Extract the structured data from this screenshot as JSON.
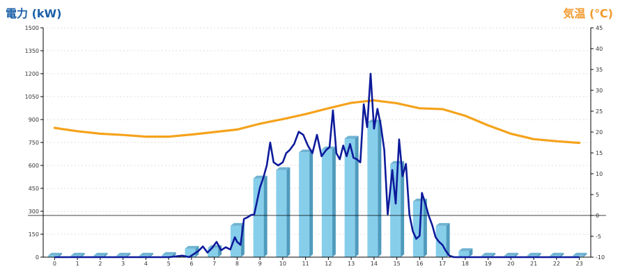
{
  "chart_data": {
    "type": "bar",
    "title_left": "電力 (kW)",
    "title_right": "気温 (℃)",
    "colors": {
      "bar": "#87ceeb",
      "power_line": "#0d1a9a",
      "temp_line": "#f5a21b",
      "title_left": "#1a5fa8",
      "title_right": "#f29a2e",
      "grid": "#bbbbbb"
    },
    "grid": true,
    "y_left": {
      "min": 0,
      "max": 1500,
      "ticks": [
        "0",
        "150",
        "300",
        "450",
        "600",
        "750",
        "900",
        "1050",
        "1200",
        "1350",
        "1500"
      ]
    },
    "y_right": {
      "min": -10,
      "max": 45,
      "ticks": [
        "-10",
        "-5",
        "0",
        "5",
        "10",
        "15",
        "20",
        "25",
        "30",
        "35",
        "40",
        "45"
      ]
    },
    "x_ticks": [
      "0",
      "1",
      "2",
      "3",
      "4",
      "5",
      "6",
      "7",
      "8",
      "9",
      "10",
      "11",
      "12",
      "13",
      "14",
      "15",
      "16",
      "17",
      "18",
      "19",
      "20",
      "21",
      "22",
      "23"
    ],
    "zero_line_temp": 0,
    "bars": [
      10,
      10,
      10,
      10,
      10,
      15,
      55,
      60,
      205,
      515,
      570,
      685,
      705,
      775,
      880,
      610,
      365,
      205,
      40,
      10,
      10,
      10,
      10,
      10
    ],
    "temperature": {
      "x": [
        0,
        1,
        2,
        3,
        4,
        5,
        6,
        7,
        8,
        9,
        10,
        11,
        12,
        13,
        14,
        15,
        16,
        17,
        18,
        19,
        20,
        21,
        22,
        23
      ],
      "values": [
        21,
        20.2,
        19.6,
        19.3,
        18.9,
        18.9,
        19.4,
        20,
        20.6,
        22,
        23.1,
        24.3,
        25.7,
        27,
        27.6,
        26.9,
        25.7,
        25.5,
        23.9,
        21.6,
        19.6,
        18.3,
        17.8,
        17.4
      ]
    },
    "power": {
      "x": [
        0,
        1,
        2,
        3,
        4,
        5,
        5.3,
        5.6,
        5.9,
        6.1,
        6.3,
        6.5,
        6.7,
        6.9,
        7.1,
        7.3,
        7.5,
        7.7,
        7.9,
        8.0,
        8.15,
        8.3,
        8.45,
        8.6,
        8.75,
        9.0,
        9.15,
        9.3,
        9.45,
        9.6,
        9.8,
        10.0,
        10.15,
        10.3,
        10.5,
        10.7,
        10.9,
        11.1,
        11.3,
        11.5,
        11.7,
        11.9,
        12.05,
        12.2,
        12.35,
        12.5,
        12.65,
        12.8,
        12.95,
        13.1,
        13.25,
        13.4,
        13.55,
        13.7,
        13.85,
        14.0,
        14.15,
        14.3,
        14.45,
        14.6,
        14.8,
        14.95,
        15.1,
        15.25,
        15.4,
        15.55,
        15.7,
        15.85,
        16.0,
        16.1,
        16.25,
        16.4,
        16.55,
        16.7,
        16.85,
        17.0,
        17.15,
        17.3,
        17.5,
        17.7,
        17.9,
        18.1,
        18.4,
        19,
        20,
        21,
        22,
        23
      ],
      "values": [
        0,
        0,
        0,
        0,
        0,
        0,
        5,
        10,
        0,
        20,
        40,
        70,
        30,
        60,
        100,
        45,
        65,
        50,
        130,
        100,
        80,
        250,
        260,
        275,
        280,
        455,
        520,
        600,
        750,
        620,
        600,
        620,
        680,
        700,
        740,
        820,
        800,
        730,
        680,
        800,
        660,
        700,
        720,
        960,
        680,
        640,
        730,
        660,
        740,
        650,
        640,
        620,
        1000,
        850,
        1200,
        840,
        970,
        860,
        700,
        280,
        570,
        350,
        770,
        530,
        610,
        280,
        170,
        120,
        140,
        420,
        350,
        270,
        210,
        130,
        100,
        80,
        40,
        10,
        0,
        0,
        0,
        0,
        0,
        0,
        0,
        0,
        0,
        0
      ]
    }
  }
}
